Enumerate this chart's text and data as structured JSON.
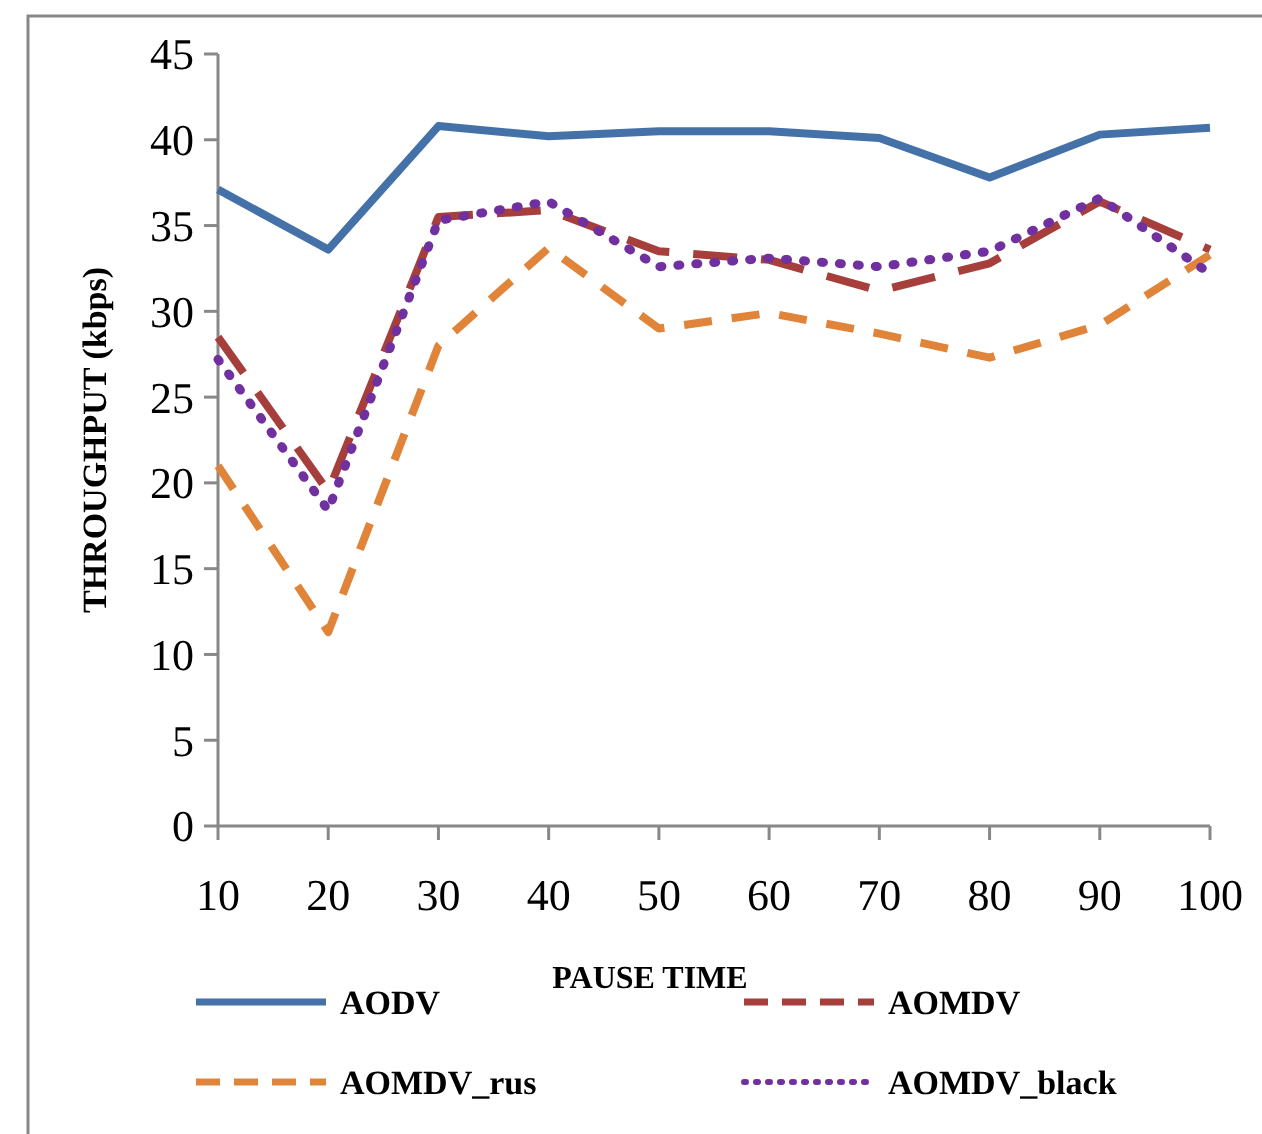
{
  "chart_data": {
    "type": "line",
    "xlabel": "PAUSE TIME",
    "ylabel": "THROUGHPUT  (kbps)",
    "categories": [
      "10",
      "20",
      "30",
      "40",
      "50",
      "60",
      "70",
      "80",
      "90",
      "100"
    ],
    "ylim": [
      0,
      45
    ],
    "yticks": [
      0,
      5,
      10,
      15,
      20,
      25,
      30,
      35,
      40,
      45
    ],
    "grid": false,
    "legend": "bottom",
    "marker": "none",
    "series": [
      {
        "name": "AODV",
        "color": "#4472a8",
        "line_style": "solid",
        "values": [
          37.1,
          33.6,
          40.8,
          40.2,
          40.5,
          40.5,
          40.1,
          37.8,
          40.3,
          40.7
        ]
      },
      {
        "name": "AOMDV",
        "color": "#a63f3c",
        "line_style": "dashed",
        "values": [
          28.5,
          19.5,
          35.5,
          35.9,
          33.5,
          33,
          31.2,
          32.8,
          36.4,
          33.6
        ]
      },
      {
        "name": "AOMDV_rus",
        "color": "#e0843a",
        "line_style": "dashed",
        "values": [
          21,
          11.3,
          28,
          33.7,
          29,
          29.9,
          28.7,
          27.3,
          29.2,
          33.3
        ]
      },
      {
        "name": "AOMDV_black",
        "color": "#7030a0",
        "line_style": "dotted",
        "values": [
          27.2,
          18.4,
          35.3,
          36.4,
          32.6,
          33.1,
          32.6,
          33.5,
          36.6,
          32.2
        ]
      }
    ]
  }
}
